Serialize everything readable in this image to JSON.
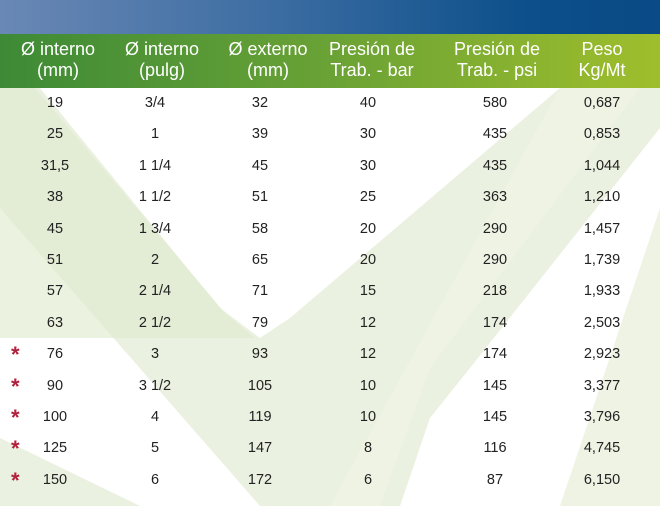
{
  "columns": [
    {
      "line1": "Ø interno",
      "line2": "(mm)"
    },
    {
      "line1": "Ø interno",
      "line2": "(pulg)"
    },
    {
      "line1": "Ø externo",
      "line2": "(mm)"
    },
    {
      "line1": "Presión de",
      "line2": "Trab. - bar"
    },
    {
      "line1": "Presión de",
      "line2": "Trab. - psi"
    },
    {
      "line1": "Peso",
      "line2": "Kg/Mt"
    }
  ],
  "asterisk": "*",
  "rows": [
    {
      "mark": false,
      "cells": [
        "19",
        "3/4",
        "32",
        "40",
        "580",
        "0,687"
      ]
    },
    {
      "mark": false,
      "cells": [
        "25",
        "1",
        "39",
        "30",
        "435",
        "0,853"
      ]
    },
    {
      "mark": false,
      "cells": [
        "31,5",
        "1 1/4",
        "45",
        "30",
        "435",
        "1,044"
      ]
    },
    {
      "mark": false,
      "cells": [
        "38",
        "1 1/2",
        "51",
        "25",
        "363",
        "1,210"
      ]
    },
    {
      "mark": false,
      "cells": [
        "45",
        "1 3/4",
        "58",
        "20",
        "290",
        "1,457"
      ]
    },
    {
      "mark": false,
      "cells": [
        "51",
        "2",
        "65",
        "20",
        "290",
        "1,739"
      ]
    },
    {
      "mark": false,
      "cells": [
        "57",
        "2 1/4",
        "71",
        "15",
        "218",
        "1,933"
      ]
    },
    {
      "mark": false,
      "cells": [
        "63",
        "2 1/2",
        "79",
        "12",
        "174",
        "2,503"
      ]
    },
    {
      "mark": true,
      "cells": [
        "76",
        "3",
        "93",
        "12",
        "174",
        "2,923"
      ]
    },
    {
      "mark": true,
      "cells": [
        "90",
        "3  1/2",
        "105",
        "10",
        "145",
        "3,377"
      ]
    },
    {
      "mark": true,
      "cells": [
        "100",
        "4",
        "119",
        "10",
        "145",
        "3,796"
      ]
    },
    {
      "mark": true,
      "cells": [
        "125",
        "5",
        "147",
        "8",
        "116",
        "4,745"
      ]
    },
    {
      "mark": true,
      "cells": [
        "150",
        "6",
        "172",
        "6",
        "87",
        "6,150"
      ]
    }
  ]
}
